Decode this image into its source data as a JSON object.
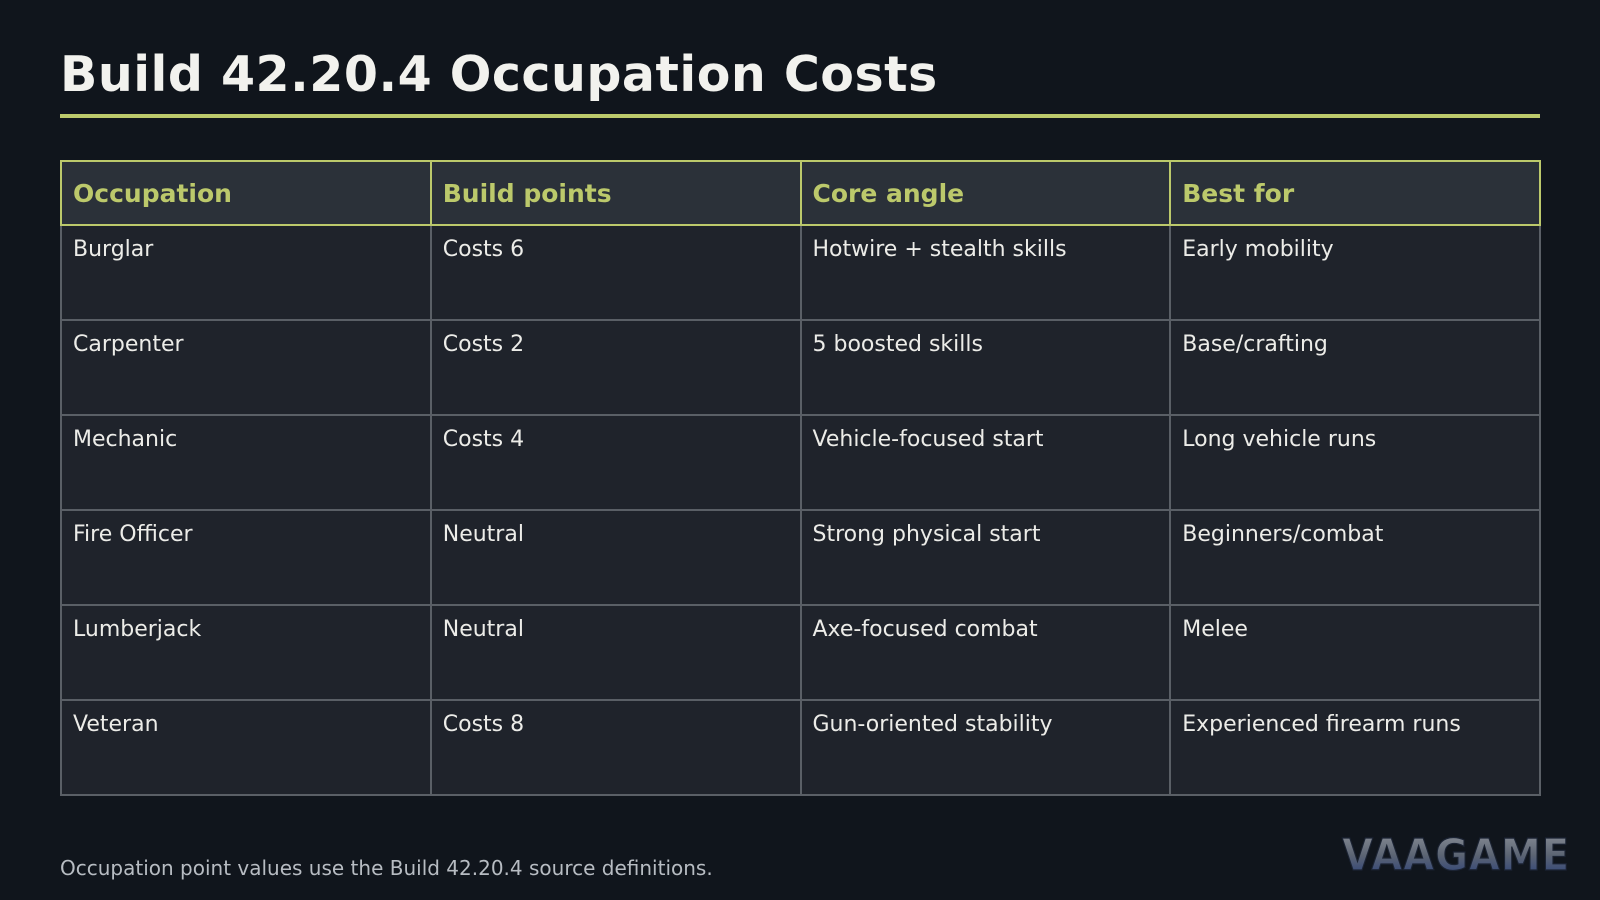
{
  "page": {
    "title": "Build 42.20.4 Occupation Costs",
    "footnote": "Occupation point values use the Build 42.20.4 source definitions.",
    "logo_text": "VAAGAME"
  },
  "table": {
    "headers": [
      "Occupation",
      "Build points",
      "Core angle",
      "Best for"
    ],
    "rows": [
      [
        "Burglar",
        "Costs 6",
        "Hotwire + stealth skills",
        "Early mobility"
      ],
      [
        "Carpenter",
        "Costs 2",
        "5 boosted skills",
        "Base/crafting"
      ],
      [
        "Mechanic",
        "Costs 4",
        "Vehicle-focused start",
        "Long vehicle runs"
      ],
      [
        "Fire Officer",
        "Neutral",
        "Strong physical start",
        "Beginners/combat"
      ],
      [
        "Lumberjack",
        "Neutral",
        "Axe-focused combat",
        "Melee"
      ],
      [
        "Veteran",
        "Costs 8",
        "Gun-oriented stability",
        "Experienced firearm runs"
      ]
    ]
  },
  "colors": {
    "background": "#10151c",
    "accent": "#bcc96b",
    "header_bg": "#2b3139",
    "cell_bg": "#1f232b",
    "cell_border": "#5a5f66"
  }
}
